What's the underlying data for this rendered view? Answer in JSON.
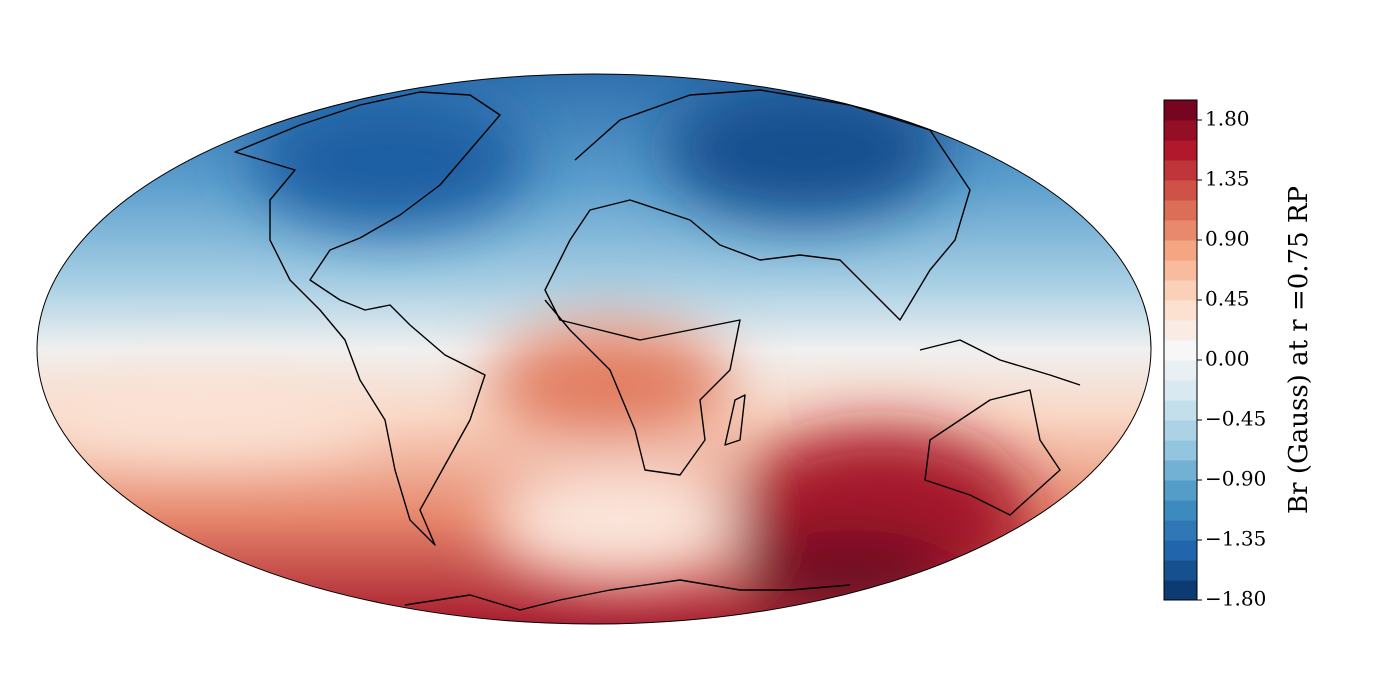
{
  "colorbar": {
    "label": "Br (Gauss) at r =0.75 RP",
    "lim": [
      -1.8,
      1.95
    ],
    "ticks": [
      {
        "value": -1.8,
        "label": "−1.80"
      },
      {
        "value": -1.35,
        "label": "−1.35"
      },
      {
        "value": -0.9,
        "label": "−0.90"
      },
      {
        "value": -0.45,
        "label": "−0.45"
      },
      {
        "value": 0,
        "label": "0.00"
      },
      {
        "value": 0.45,
        "label": "0.45"
      },
      {
        "value": 0.9,
        "label": "0.90"
      },
      {
        "value": 1.35,
        "label": "1.35"
      },
      {
        "value": 1.8,
        "label": "1.80"
      }
    ],
    "bands": 25,
    "colormap": [
      "#053061",
      "#2166ac",
      "#4393c3",
      "#92c5de",
      "#d1e5f0",
      "#f7f7f7",
      "#fddbc7",
      "#f4a582",
      "#d6604d",
      "#b2182b",
      "#67001f"
    ]
  }
}
